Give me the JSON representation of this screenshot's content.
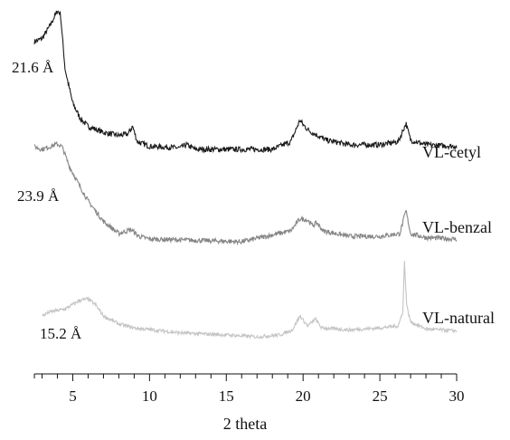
{
  "chart_data": {
    "type": "line",
    "title": "",
    "xlabel": "2 theta",
    "ylabel": "",
    "xlim": [
      2.5,
      30
    ],
    "x_ticks": [
      5,
      10,
      15,
      20,
      25,
      30
    ],
    "grid": false,
    "legend": "none (series labelled at right end of each trace)",
    "series": [
      {
        "name": "VL-cetyl",
        "color": "#1a1a1a",
        "annotation": "21.6 Å",
        "points": [
          [
            2.5,
            0.8
          ],
          [
            3.0,
            0.82
          ],
          [
            3.5,
            0.9
          ],
          [
            4.0,
            1.0
          ],
          [
            4.2,
            0.98
          ],
          [
            4.5,
            0.62
          ],
          [
            5.0,
            0.4
          ],
          [
            5.5,
            0.3
          ],
          [
            6.0,
            0.25
          ],
          [
            7.0,
            0.21
          ],
          [
            8.0,
            0.19
          ],
          [
            8.6,
            0.2
          ],
          [
            8.9,
            0.25
          ],
          [
            9.2,
            0.15
          ],
          [
            10.0,
            0.12
          ],
          [
            12.0,
            0.11
          ],
          [
            12.4,
            0.13
          ],
          [
            13.0,
            0.1
          ],
          [
            15.0,
            0.1
          ],
          [
            18.0,
            0.1
          ],
          [
            19.2,
            0.15
          ],
          [
            19.8,
            0.29
          ],
          [
            20.0,
            0.26
          ],
          [
            20.4,
            0.22
          ],
          [
            21.5,
            0.16
          ],
          [
            23.0,
            0.13
          ],
          [
            25.0,
            0.13
          ],
          [
            26.2,
            0.15
          ],
          [
            26.7,
            0.27
          ],
          [
            27.0,
            0.16
          ],
          [
            28.0,
            0.13
          ],
          [
            30.0,
            0.12
          ]
        ]
      },
      {
        "name": "VL-benzal",
        "color": "#858585",
        "annotation": "23.9 Å",
        "points": [
          [
            2.5,
            0.8
          ],
          [
            3.0,
            0.78
          ],
          [
            3.5,
            0.8
          ],
          [
            4.0,
            0.82
          ],
          [
            4.3,
            0.8
          ],
          [
            4.8,
            0.65
          ],
          [
            5.5,
            0.5
          ],
          [
            6.0,
            0.4
          ],
          [
            7.0,
            0.25
          ],
          [
            8.0,
            0.16
          ],
          [
            8.8,
            0.19
          ],
          [
            9.3,
            0.14
          ],
          [
            10.0,
            0.12
          ],
          [
            13.0,
            0.11
          ],
          [
            16.0,
            0.1
          ],
          [
            19.2,
            0.18
          ],
          [
            19.8,
            0.27
          ],
          [
            20.3,
            0.26
          ],
          [
            20.6,
            0.22
          ],
          [
            20.9,
            0.24
          ],
          [
            21.3,
            0.18
          ],
          [
            23.0,
            0.14
          ],
          [
            25.0,
            0.14
          ],
          [
            26.3,
            0.16
          ],
          [
            26.7,
            0.33
          ],
          [
            27.0,
            0.16
          ],
          [
            28.0,
            0.13
          ],
          [
            30.0,
            0.12
          ]
        ]
      },
      {
        "name": "VL-natural",
        "color": "#c4c4c4",
        "annotation": "15.2 Å",
        "points": [
          [
            3.0,
            0.3
          ],
          [
            3.5,
            0.34
          ],
          [
            4.5,
            0.37
          ],
          [
            5.5,
            0.46
          ],
          [
            6.0,
            0.47
          ],
          [
            6.5,
            0.41
          ],
          [
            7.0,
            0.3
          ],
          [
            8.0,
            0.22
          ],
          [
            9.0,
            0.18
          ],
          [
            12.0,
            0.13
          ],
          [
            15.0,
            0.11
          ],
          [
            17.0,
            0.09
          ],
          [
            18.5,
            0.11
          ],
          [
            19.3,
            0.16
          ],
          [
            19.8,
            0.3
          ],
          [
            20.3,
            0.2
          ],
          [
            20.8,
            0.27
          ],
          [
            21.2,
            0.18
          ],
          [
            23.0,
            0.16
          ],
          [
            25.0,
            0.18
          ],
          [
            26.2,
            0.2
          ],
          [
            26.5,
            0.35
          ],
          [
            26.6,
            0.85
          ],
          [
            26.75,
            0.4
          ],
          [
            27.0,
            0.24
          ],
          [
            28.0,
            0.17
          ],
          [
            30.0,
            0.15
          ]
        ]
      }
    ]
  }
}
